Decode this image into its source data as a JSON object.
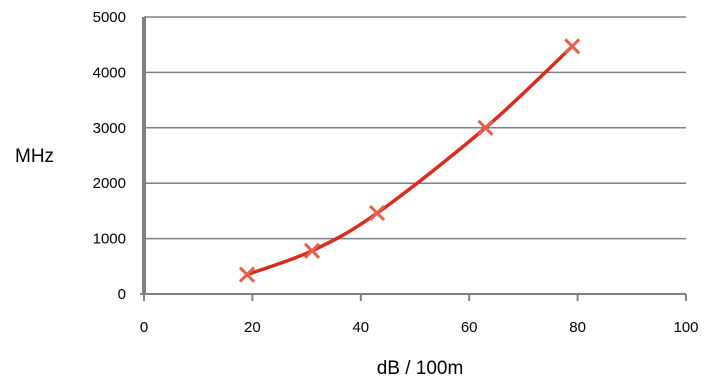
{
  "chart_data": {
    "type": "scatter",
    "title": "",
    "xlabel": "dB / 100m",
    "ylabel": "MHz",
    "xlim": [
      0,
      100
    ],
    "ylim": [
      0,
      5000
    ],
    "x_ticks": [
      "0",
      "20",
      "40",
      "60",
      "80",
      "100"
    ],
    "y_ticks": [
      "0",
      "1000",
      "2000",
      "3000",
      "4000",
      "5000"
    ],
    "grid": "horizontal",
    "legend": "none",
    "series": [
      {
        "points": [
          {
            "x": 19,
            "y": 350
          },
          {
            "x": 31,
            "y": 780
          },
          {
            "x": 43,
            "y": 1460
          },
          {
            "x": 63,
            "y": 3000
          },
          {
            "x": 79,
            "y": 4470
          }
        ],
        "marker": "x",
        "marker_color": "#e8604c",
        "line_color": "#d92b1e"
      }
    ],
    "colors": {
      "gridline": "#808080",
      "axis": "#808080"
    }
  }
}
